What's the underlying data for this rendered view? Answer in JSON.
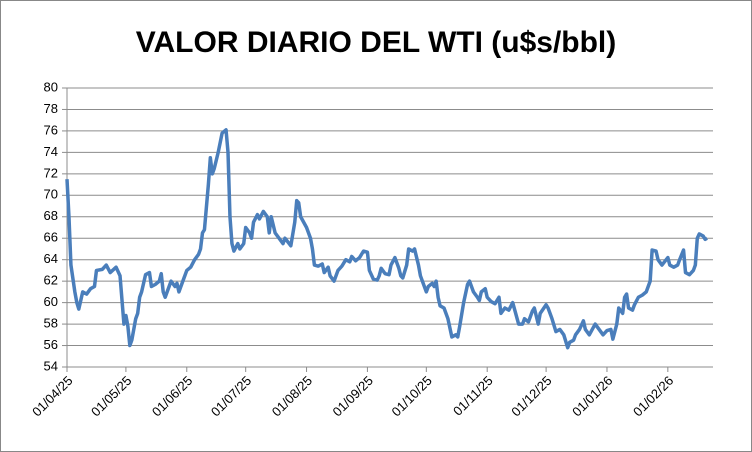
{
  "chart_data": {
    "type": "line",
    "title": "VALOR DIARIO DEL WTI (u$s/bbl)",
    "x": [
      "01/04/25",
      "02/04/25",
      "03/04/25",
      "05/04/25",
      "06/04/25",
      "07/04/25",
      "09/04/25",
      "11/04/25",
      "13/04/25",
      "15/04/25",
      "16/04/25",
      "19/04/25",
      "21/04/25",
      "23/04/25",
      "26/04/25",
      "28/04/25",
      "30/04/25",
      "01/05/25",
      "02/05/25",
      "03/05/25",
      "04/05/25",
      "06/05/25",
      "07/05/25",
      "08/05/25",
      "09/05/25",
      "11/05/25",
      "13/05/25",
      "14/05/25",
      "16/05/25",
      "18/05/25",
      "19/05/25",
      "20/05/25",
      "21/05/25",
      "23/05/25",
      "24/05/25",
      "26/05/25",
      "27/05/25",
      "28/05/25",
      "30/05/25",
      "01/06/25",
      "03/06/25",
      "05/06/25",
      "07/06/25",
      "08/06/25",
      "09/06/25",
      "10/06/25",
      "12/06/25",
      "13/06/25",
      "14/06/25",
      "15/06/25",
      "17/06/25",
      "19/06/25",
      "21/06/25",
      "22/06/25",
      "23/06/25",
      "24/06/25",
      "25/06/25",
      "27/06/25",
      "28/06/25",
      "30/06/25",
      "01/07/25",
      "03/07/25",
      "04/07/25",
      "05/07/25",
      "07/07/25",
      "08/07/25",
      "10/07/25",
      "12/07/25",
      "13/07/25",
      "14/07/25",
      "16/07/25",
      "18/07/25",
      "20/07/25",
      "21/07/25",
      "24/07/25",
      "26/07/25",
      "27/07/25",
      "28/07/25",
      "29/07/25",
      "01/08/25",
      "03/08/25",
      "04/08/25",
      "05/08/25",
      "07/08/25",
      "09/08/25",
      "10/08/25",
      "12/08/25",
      "13/08/25",
      "15/08/25",
      "16/08/25",
      "17/08/25",
      "19/08/25",
      "21/08/25",
      "23/08/25",
      "24/08/25",
      "26/08/25",
      "28/08/25",
      "30/08/25",
      "01/09/25",
      "02/09/25",
      "04/09/25",
      "06/09/25",
      "07/09/25",
      "08/09/25",
      "10/09/25",
      "12/09/25",
      "13/09/25",
      "15/09/25",
      "17/09/25",
      "18/09/25",
      "19/09/25",
      "21/09/25",
      "22/09/25",
      "24/09/25",
      "25/09/25",
      "27/09/25",
      "28/09/25",
      "01/10/25",
      "02/10/25",
      "04/10/25",
      "05/10/25",
      "06/10/25",
      "07/10/25",
      "08/10/25",
      "10/10/25",
      "12/10/25",
      "14/10/25",
      "16/10/25",
      "17/10/25",
      "18/10/25",
      "20/10/25",
      "22/10/25",
      "23/10/25",
      "25/10/25",
      "27/10/25",
      "28/10/25",
      "29/10/25",
      "31/10/25",
      "01/11/25",
      "03/11/25",
      "05/11/25",
      "07/11/25",
      "08/11/25",
      "10/11/25",
      "12/11/25",
      "14/11/25",
      "17/11/25",
      "19/11/25",
      "20/11/25",
      "22/11/25",
      "24/11/25",
      "25/11/25",
      "27/11/25",
      "28/11/25",
      "01/12/25",
      "02/12/25",
      "04/12/25",
      "06/12/25",
      "08/12/25",
      "10/12/25",
      "12/12/25",
      "13/12/25",
      "15/12/25",
      "16/12/25",
      "18/12/25",
      "20/12/25",
      "21/12/25",
      "23/12/25",
      "26/12/25",
      "28/12/25",
      "30/12/25",
      "01/01/26",
      "03/01/26",
      "04/01/26",
      "06/01/26",
      "07/01/26",
      "09/01/26",
      "10/01/26",
      "11/01/26",
      "12/01/26",
      "14/01/26",
      "15/01/26",
      "17/01/26",
      "19/01/26",
      "21/01/26",
      "23/01/26",
      "24/01/26",
      "26/01/26",
      "27/01/26",
      "29/01/26",
      "01/02/26",
      "02/02/26",
      "04/02/26",
      "06/02/26",
      "07/02/26",
      "09/02/26",
      "10/02/26",
      "12/02/26",
      "14/02/26",
      "15/02/26",
      "16/02/26",
      "17/02/26",
      "19/02/26",
      "20/02/26",
      "21/02/26"
    ],
    "values": [
      71.5,
      68,
      63.5,
      61,
      60,
      59.4,
      61,
      60.8,
      61.3,
      61.5,
      63,
      63.1,
      63.5,
      62.8,
      63.3,
      62.5,
      58,
      58.8,
      57.8,
      56,
      56.5,
      58.5,
      59,
      60.5,
      61,
      62.6,
      62.8,
      61.5,
      61.7,
      62,
      62.7,
      61,
      60.5,
      61.5,
      62,
      61.5,
      61.8,
      61,
      62,
      63,
      63.3,
      64,
      64.5,
      65,
      66.5,
      66.8,
      71,
      73.5,
      72,
      72.5,
      74,
      75.8,
      76.1,
      74,
      68,
      65.5,
      64.8,
      65.5,
      65,
      65.5,
      67,
      66.5,
      66,
      67.5,
      68.2,
      67.8,
      68.5,
      68,
      66.5,
      68,
      66.5,
      66,
      65.5,
      66,
      65.3,
      67.5,
      69.5,
      69.3,
      68,
      67,
      66,
      65,
      63.5,
      63.4,
      63.6,
      62.8,
      63.3,
      62.5,
      62,
      62.5,
      63,
      63.4,
      64,
      63.8,
      64.3,
      63.9,
      64.2,
      64.8,
      64.7,
      63,
      62.2,
      62.1,
      62.5,
      63.2,
      62.7,
      62.6,
      63.5,
      64.2,
      63.2,
      62.5,
      62.3,
      63.5,
      65,
      64.8,
      65,
      63.5,
      62.5,
      61,
      61.5,
      61.8,
      61.5,
      62,
      60.5,
      59.7,
      59.5,
      58.5,
      56.8,
      57,
      56.8,
      57.8,
      60,
      61.7,
      62,
      61,
      60.5,
      60.2,
      61,
      61.3,
      60.5,
      60.1,
      59.9,
      60.5,
      59,
      59.5,
      59.3,
      60,
      58,
      58,
      58.5,
      58.2,
      59.2,
      59.5,
      58,
      59,
      59.8,
      59.5,
      58.5,
      57.3,
      57.5,
      57,
      55.8,
      56.3,
      56.5,
      57,
      57.5,
      58.3,
      57.5,
      57,
      58,
      57.5,
      57,
      57.4,
      57.5,
      56.6,
      58,
      59.5,
      59,
      60.5,
      60.8,
      59.5,
      59.3,
      59.8,
      60.5,
      60.7,
      61,
      62,
      64.9,
      64.8,
      64,
      63.5,
      64.2,
      63.5,
      63.3,
      63.5,
      64,
      64.9,
      62.8,
      62.6,
      63,
      63.5,
      66,
      66.4,
      66.2,
      65.9,
      66
    ],
    "color": "#4a7ebb",
    "xlim": [
      "01/04/25",
      "24/02/26"
    ],
    "xticks": [
      "01/04/25",
      "01/05/25",
      "01/06/25",
      "01/07/25",
      "01/08/25",
      "01/09/25",
      "01/10/25",
      "01/11/25",
      "01/12/25",
      "01/01/26",
      "01/02/26"
    ],
    "ylim": [
      54,
      80
    ],
    "yticks": [
      54,
      56,
      58,
      60,
      62,
      64,
      66,
      68,
      70,
      72,
      74,
      76,
      78,
      80
    ],
    "grid": true
  }
}
